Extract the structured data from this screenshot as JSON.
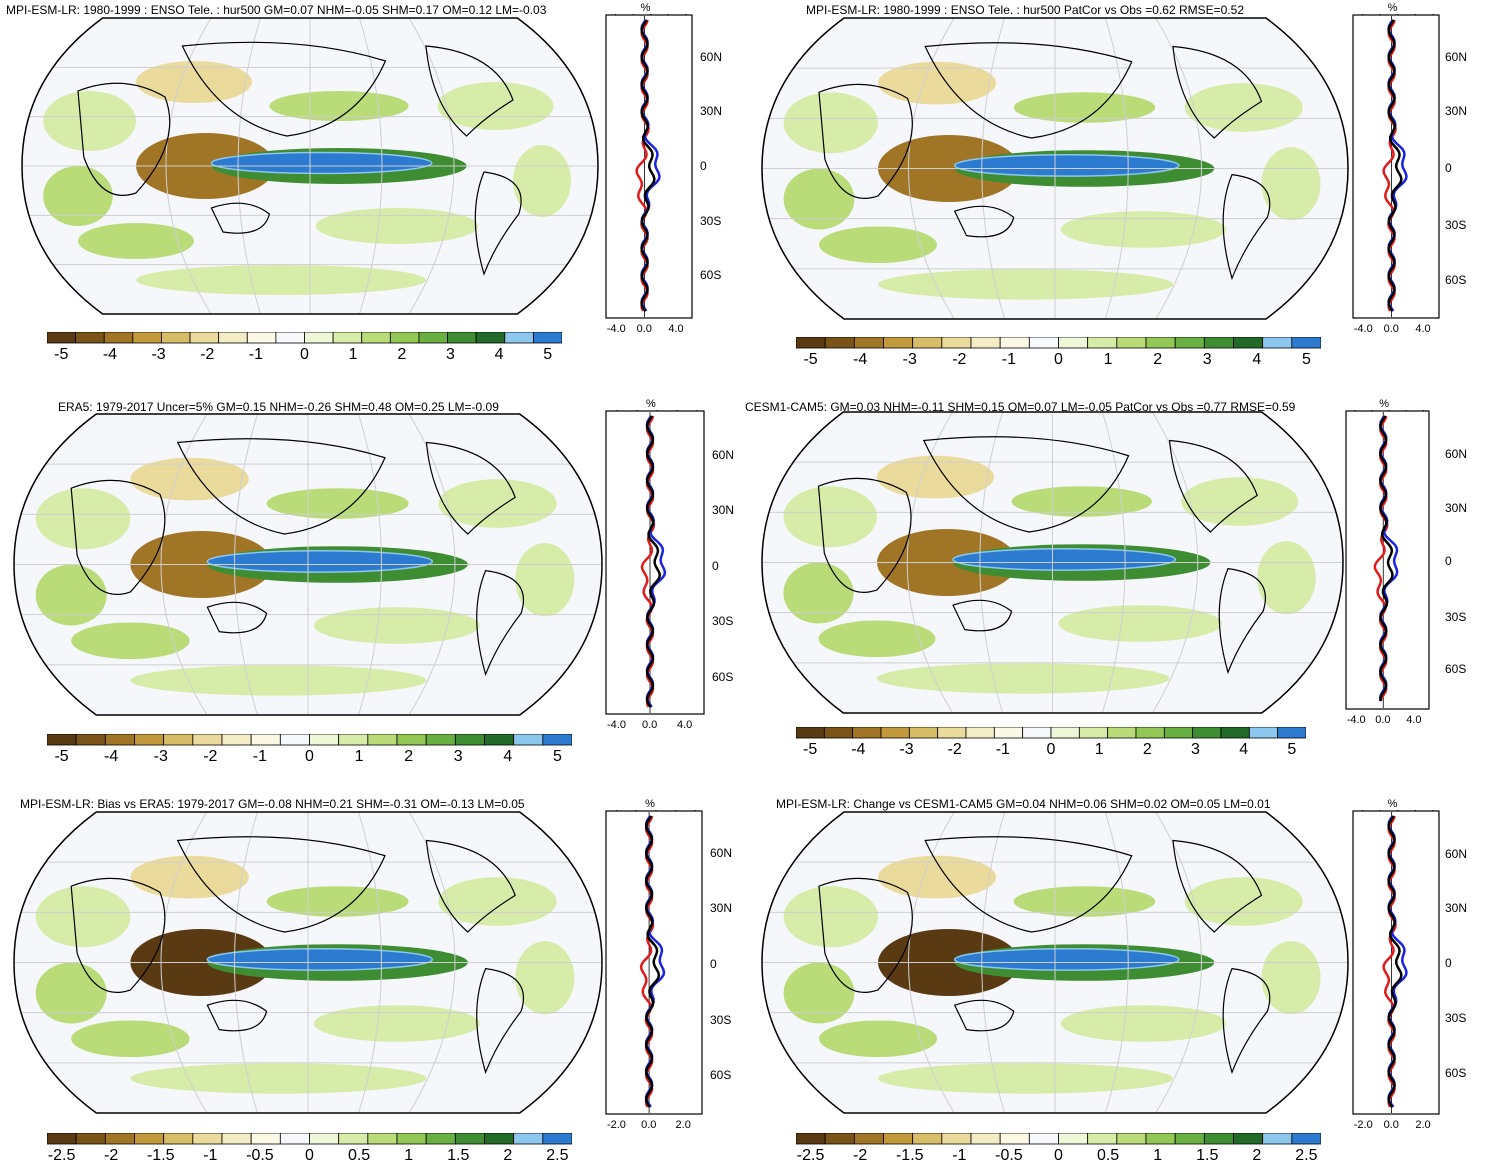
{
  "palette": [
    "#5a3a12",
    "#7a5318",
    "#a07526",
    "#c29a3c",
    "#d8bd68",
    "#eadb9c",
    "#f4ecc4",
    "#fbf8e6",
    "#f7f8fb",
    "#eef7d8",
    "#d8ecaa",
    "#b9dc78",
    "#93c857",
    "#69b042",
    "#3e8d32",
    "#216a27",
    "#8cc7ee",
    "#2c7bd0"
  ],
  "panels": [
    {
      "id": "p1",
      "title": "MPI-ESM-LR: 1980-1999 : ENSO Tele. : hur500 GM=0.07 NHM=-0.05 SHM=0.17 OM=0.12 LM=-0.03",
      "cbar_ticks": [
        "-5",
        "-4",
        "-3",
        "-2",
        "-1",
        "0",
        "1",
        "2",
        "3",
        "4",
        "5"
      ],
      "profile_unit": "%",
      "profile_xticks": [
        "-4.0",
        "0.0",
        "4.0"
      ],
      "lat_labels": [
        "60N",
        "30N",
        "0",
        "30S",
        "60S"
      ]
    },
    {
      "id": "p2",
      "title": "MPI-ESM-LR: 1980-1999 : ENSO Tele. : hur500 PatCor vs Obs =0.62 RMSE=0.52",
      "cbar_ticks": [
        "-5",
        "-4",
        "-3",
        "-2",
        "-1",
        "0",
        "1",
        "2",
        "3",
        "4",
        "5"
      ],
      "profile_unit": "%",
      "profile_xticks": [
        "-4.0",
        "0.0",
        "4.0"
      ],
      "lat_labels": [
        "60N",
        "30N",
        "0",
        "30S",
        "60S"
      ]
    },
    {
      "id": "p3",
      "title": "ERA5: 1979-2017 Uncer=5% GM=0.15 NHM=-0.26 SHM=0.48 OM=0.25 LM=-0.09",
      "cbar_ticks": [
        "-5",
        "-4",
        "-3",
        "-2",
        "-1",
        "0",
        "1",
        "2",
        "3",
        "4",
        "5"
      ],
      "profile_unit": "%",
      "profile_xticks": [
        "-4.0",
        "0.0",
        "4.0"
      ],
      "lat_labels": [
        "60N",
        "30N",
        "0",
        "30S",
        "60S"
      ]
    },
    {
      "id": "p4",
      "title": "CESM1-CAM5: GM=0.03 NHM=-0.11 SHM=0.15 OM=0.07 LM=-0.05 PatCor vs Obs =0.77 RMSE=0.59",
      "cbar_ticks": [
        "-5",
        "-4",
        "-3",
        "-2",
        "-1",
        "0",
        "1",
        "2",
        "3",
        "4",
        "5"
      ],
      "profile_unit": "%",
      "profile_xticks": [
        "-4.0",
        "0.0",
        "4.0"
      ],
      "lat_labels": [
        "60N",
        "30N",
        "0",
        "30S",
        "60S"
      ]
    },
    {
      "id": "p5",
      "title": "MPI-ESM-LR: Bias vs ERA5: 1979-2017 GM=-0.08 NHM=0.21 SHM=-0.31 OM=-0.13 LM=0.05",
      "cbar_ticks": [
        "-2.5",
        "-2",
        "-1.5",
        "-1",
        "-0.5",
        "0",
        "0.5",
        "1",
        "1.5",
        "2",
        "2.5"
      ],
      "profile_unit": "%",
      "profile_xticks": [
        "-2.0",
        "0.0",
        "2.0"
      ],
      "lat_labels": [
        "60N",
        "30N",
        "0",
        "30S",
        "60S"
      ]
    },
    {
      "id": "p6",
      "title": "MPI-ESM-LR: Change vs CESM1-CAM5 GM=0.04 NHM=0.06 SHM=0.02 OM=0.05 LM=0.01",
      "cbar_ticks": [
        "-2.5",
        "-2",
        "-1.5",
        "-1",
        "-0.5",
        "0",
        "0.5",
        "1",
        "1.5",
        "2",
        "2.5"
      ],
      "profile_unit": "%",
      "profile_xticks": [
        "-2.0",
        "0.0",
        "2.0"
      ],
      "lat_labels": [
        "60N",
        "30N",
        "0",
        "30S",
        "60S"
      ]
    }
  ]
}
